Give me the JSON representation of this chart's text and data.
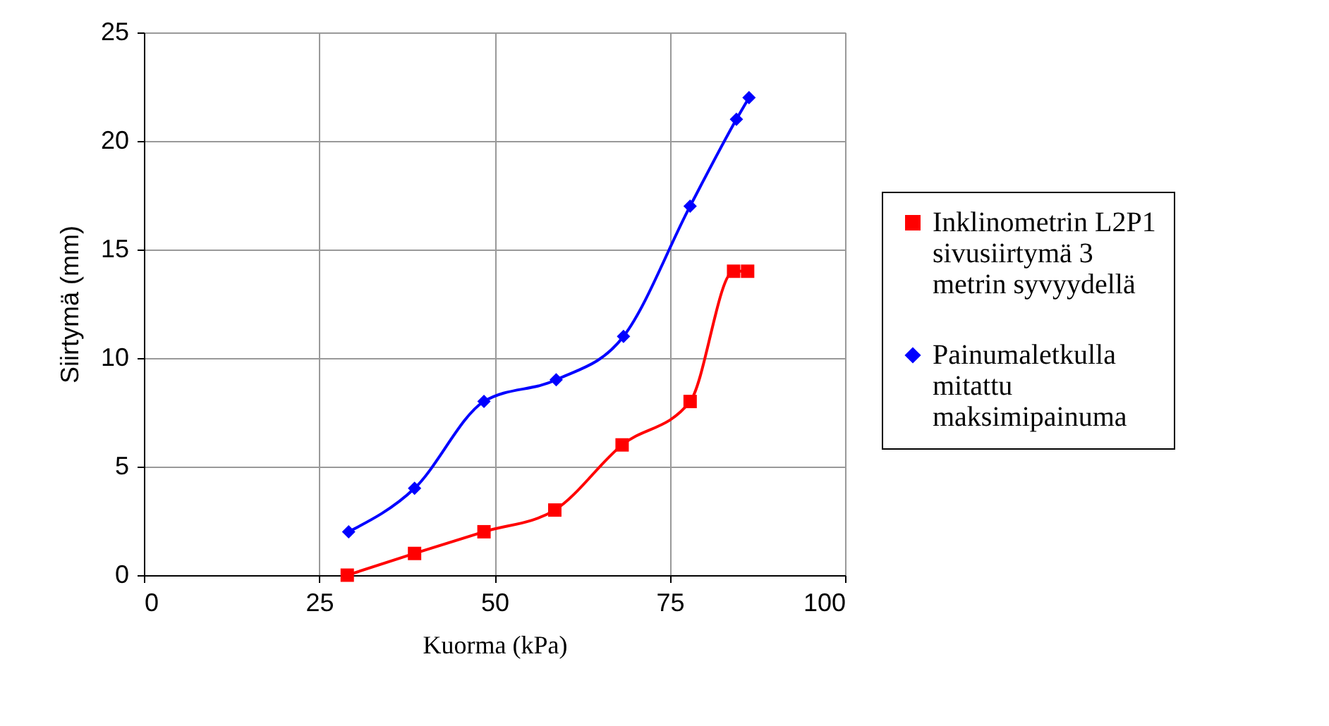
{
  "chart_data": {
    "type": "line",
    "xlabel": "Kuorma (kPa)",
    "ylabel": "Siirtymä (mm)",
    "xlim": [
      0,
      100
    ],
    "xticks": [
      0,
      25,
      50,
      75,
      100
    ],
    "ylim": [
      0,
      25
    ],
    "yticks": [
      0,
      5,
      10,
      15,
      20,
      25
    ],
    "grid": true,
    "legend": "right",
    "series": [
      {
        "name": "Inklinometrin L2P1 sivusiirtymä 3 metrin syvyydellä",
        "color": "#ff0000",
        "marker": "square",
        "x": [
          29,
          38.6,
          48.5,
          58.6,
          68.2,
          77.9,
          84.1,
          86.1
        ],
        "values": [
          0,
          1,
          2,
          3,
          6,
          8,
          14,
          14
        ]
      },
      {
        "name": "Painumaletkulla mitattu maksimipainuma",
        "color": "#0000ff",
        "marker": "diamond",
        "x": [
          29.2,
          38.6,
          48.5,
          58.8,
          68.4,
          77.9,
          84.5,
          86.3
        ],
        "values": [
          2,
          4,
          8,
          9,
          11,
          17,
          21,
          22
        ]
      }
    ]
  }
}
